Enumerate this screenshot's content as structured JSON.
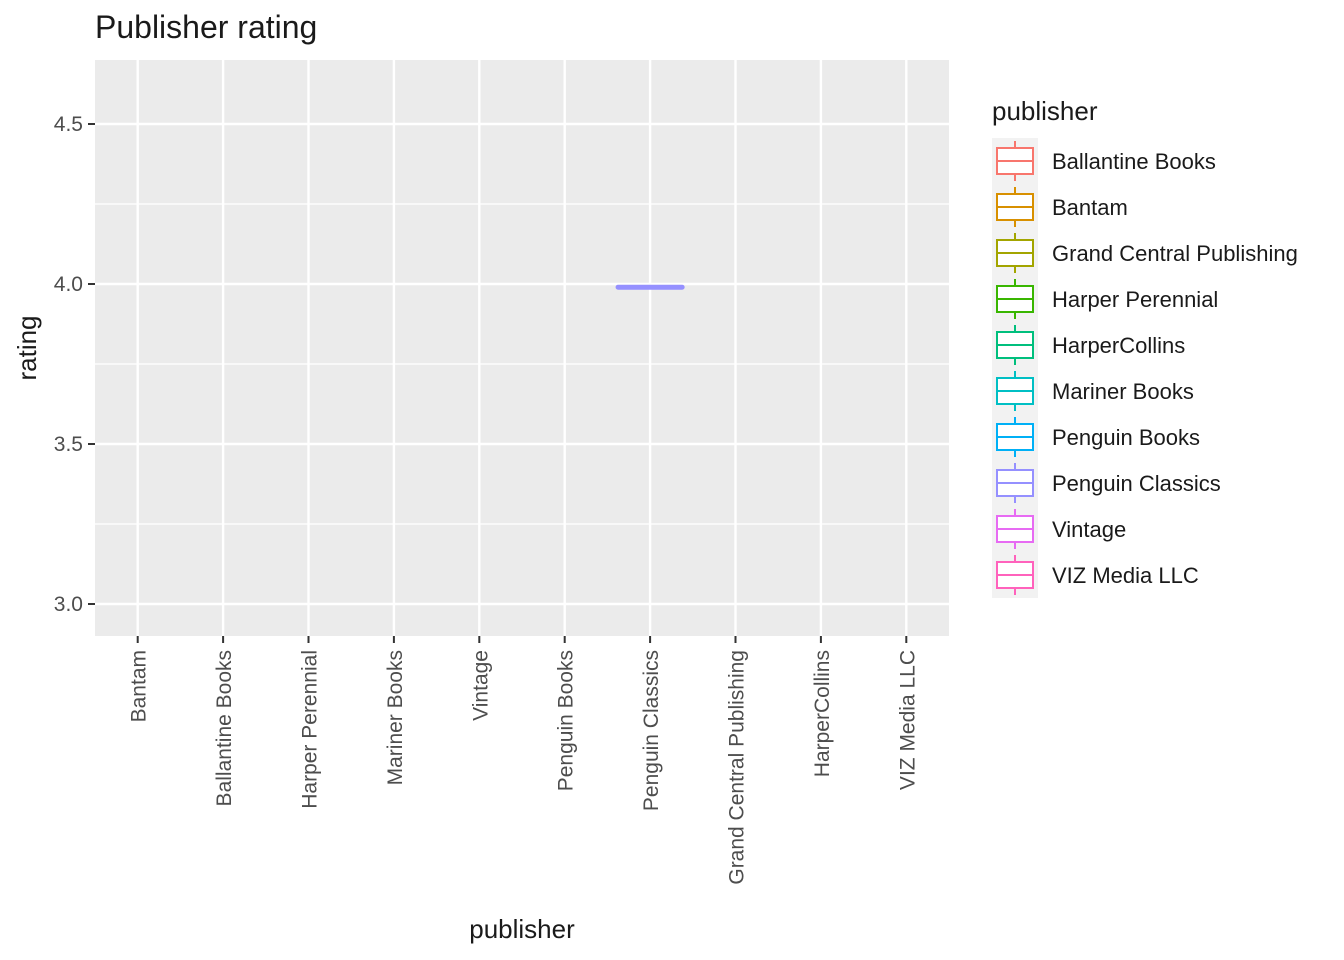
{
  "chart_data": {
    "type": "boxplot",
    "title": "Publisher rating",
    "xlabel": "publisher",
    "ylabel": "rating",
    "ylim": [
      2.9,
      4.7
    ],
    "yticks": [
      3.0,
      3.5,
      4.0,
      4.5
    ],
    "ytick_labels": [
      "3.0",
      "3.5",
      "4.0",
      "4.5"
    ],
    "categories": [
      "Bantam",
      "Ballantine Books",
      "Harper Perennial",
      "Mariner Books",
      "Vintage",
      "Penguin Books",
      "Penguin Classics",
      "Grand Central Publishing",
      "HarperCollins",
      "VIZ Media LLC"
    ],
    "boxes": [
      {
        "category": "Penguin Classics",
        "min": 3.99,
        "q1": 3.99,
        "median": 3.99,
        "q3": 3.99,
        "max": 3.99,
        "color": "#9590FF"
      }
    ],
    "grid": true,
    "legend": {
      "title": "publisher",
      "position": "right",
      "entries": [
        {
          "label": "Ballantine Books",
          "color": "#F8766D"
        },
        {
          "label": "Bantam",
          "color": "#D89000"
        },
        {
          "label": "Grand Central Publishing",
          "color": "#A3A500"
        },
        {
          "label": "Harper Perennial",
          "color": "#39B600"
        },
        {
          "label": "HarperCollins",
          "color": "#00BF7D"
        },
        {
          "label": "Mariner Books",
          "color": "#00BFC4"
        },
        {
          "label": "Penguin Books",
          "color": "#00B0F6"
        },
        {
          "label": "Penguin Classics",
          "color": "#9590FF"
        },
        {
          "label": "Vintage",
          "color": "#E76BF3"
        },
        {
          "label": "VIZ Media LLC",
          "color": "#FF62BC"
        }
      ]
    }
  }
}
